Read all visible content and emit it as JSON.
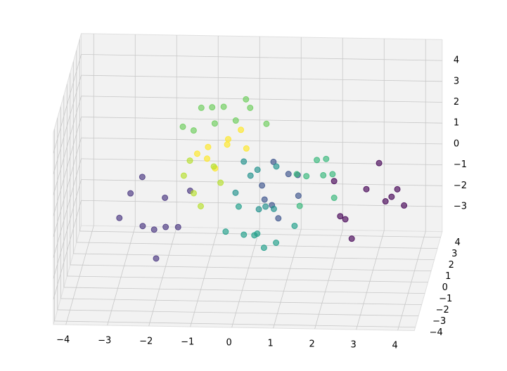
{
  "chart_data": {
    "type": "scatter3d",
    "xlim": [
      -4.3,
      4.4
    ],
    "ylim": [
      -4.3,
      4.5
    ],
    "zlim": [
      -4.2,
      5
    ],
    "xticks": [
      {
        "value": -4,
        "label": "−4"
      },
      {
        "value": -3,
        "label": "−3"
      },
      {
        "value": -2,
        "label": "−2"
      },
      {
        "value": -1,
        "label": "−1"
      },
      0,
      1,
      2,
      3,
      4
    ],
    "yticks": [
      {
        "value": -4,
        "label": "−4"
      },
      {
        "value": -3,
        "label": "−3"
      },
      {
        "value": -2,
        "label": "−2"
      },
      {
        "value": -1,
        "label": "−1"
      },
      0,
      1,
      2,
      3,
      4
    ],
    "zticks": [
      {
        "value": -3,
        "label": "−3"
      },
      {
        "value": -2,
        "label": "−2"
      },
      {
        "value": -1,
        "label": "−1"
      },
      0,
      1,
      2,
      3,
      4
    ],
    "grid": true,
    "series": [
      {
        "color": "#440154",
        "x": [
          2.1,
          2.5,
          2.9,
          3.3,
          3.7,
          2.7,
          3.1,
          3.5,
          2.3,
          3.9
        ],
        "y": [
          0.5,
          -1.2,
          0.2,
          1.0,
          -0.5,
          -1.8,
          1.6,
          0.3,
          -0.2,
          -1.0
        ],
        "z": [
          0.3,
          -0.6,
          0.1,
          -0.9,
          0.5,
          -1.2,
          0.6,
          -0.3,
          -1.0,
          0.0
        ]
      },
      {
        "color": "#46337e",
        "x": [
          -2.8,
          -2.4,
          -2.0,
          -1.6,
          -2.6,
          -1.8,
          -2.2,
          -1.4,
          -3.0,
          -2.0
        ],
        "y": [
          0.4,
          -1.0,
          0.8,
          -0.3,
          1.5,
          -1.6,
          0.0,
          0.9,
          -0.5,
          -2.0
        ],
        "z": [
          -0.4,
          -1.2,
          -0.8,
          -1.6,
          -0.2,
          -0.9,
          -1.9,
          -0.5,
          -1.1,
          -2.2
        ]
      },
      {
        "color": "#6ccd5a",
        "x": [
          -1.6,
          -1.2,
          -0.8,
          -0.4,
          0.0,
          -1.0,
          -0.6,
          -1.4,
          -0.2,
          0.4
        ],
        "y": [
          1.2,
          1.8,
          0.8,
          2.2,
          1.5,
          2.6,
          1.0,
          2.0,
          2.8,
          1.4
        ],
        "z": [
          2.4,
          3.0,
          2.8,
          2.2,
          3.2,
          2.6,
          3.5,
          1.8,
          2.9,
          2.5
        ]
      },
      {
        "color": "#fde725",
        "x": [
          -1.2,
          -0.9,
          -0.5,
          -0.2,
          -0.7,
          -1.0,
          0.0,
          -0.4
        ],
        "y": [
          0.5,
          0.0,
          0.8,
          1.2,
          -0.4,
          1.0,
          0.3,
          -0.2
        ],
        "z": [
          1.5,
          2.1,
          1.8,
          2.3,
          1.3,
          1.0,
          1.9,
          2.6
        ]
      },
      {
        "color": "#b5de2b",
        "x": [
          -1.5,
          -1.2,
          -0.8,
          -1.0,
          -0.6,
          -1.4
        ],
        "y": [
          0.2,
          -0.6,
          0.5,
          -1.0,
          0.0,
          0.8
        ],
        "z": [
          0.6,
          0.2,
          0.9,
          -0.2,
          0.4,
          1.0
        ]
      },
      {
        "color": "#3b528b",
        "x": [
          0.4,
          0.7,
          1.0,
          1.3,
          0.6,
          0.9,
          1.2,
          0.5
        ],
        "y": [
          0.0,
          -0.8,
          0.5,
          -0.3,
          1.0,
          -1.4,
          0.8,
          -0.5
        ],
        "z": [
          0.3,
          -0.2,
          0.6,
          0.0,
          0.9,
          -0.5,
          0.4,
          -0.1
        ]
      },
      {
        "color": "#21918c",
        "x": [
          -0.2,
          0.1,
          0.4,
          0.7,
          0.2,
          0.5,
          -0.1,
          0.8
        ],
        "y": [
          -0.5,
          0.3,
          -1.0,
          0.6,
          1.2,
          -0.2,
          0.8,
          -1.5
        ],
        "z": [
          0.2,
          0.6,
          -0.3,
          0.9,
          0.4,
          -0.6,
          1.0,
          0.0
        ]
      },
      {
        "color": "#35b779",
        "x": [
          1.2,
          1.5,
          1.8,
          2.1,
          1.4,
          1.9,
          2.2,
          1.6
        ],
        "y": [
          0.5,
          -0.4,
          1.0,
          0.0,
          -1.2,
          0.6,
          -0.8,
          1.6
        ],
        "z": [
          0.6,
          1.0,
          0.3,
          0.9,
          0.0,
          1.3,
          0.2,
          0.7
        ]
      },
      {
        "color": "#1f9e89",
        "x": [
          -0.4,
          0.0,
          0.4,
          0.8,
          1.2,
          0.2,
          0.6,
          -0.2
        ],
        "y": [
          -1.0,
          -0.5,
          -1.5,
          -0.8,
          -0.2,
          0.2,
          -2.0,
          0.5
        ],
        "z": [
          -1.4,
          -1.8,
          -1.2,
          -2.0,
          -1.5,
          -2.2,
          -1.6,
          -1.0
        ]
      }
    ]
  }
}
